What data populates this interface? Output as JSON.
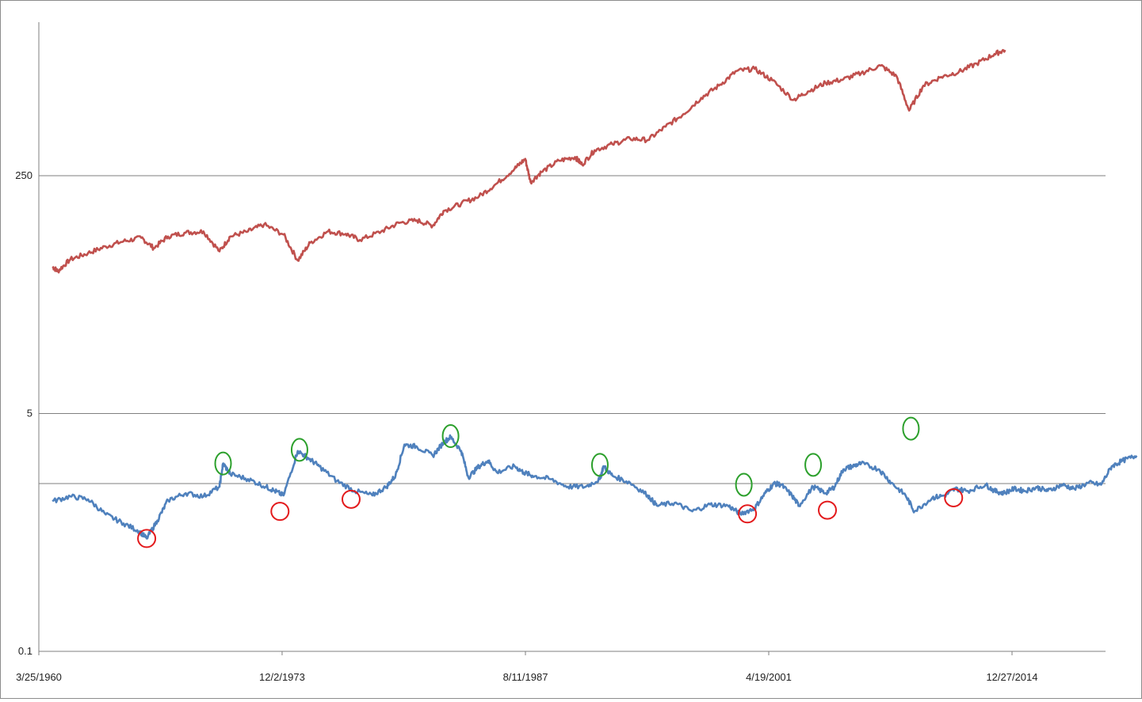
{
  "chart_data": {
    "type": "line",
    "title": "",
    "xlabel": "",
    "ylabel": "",
    "y_scale": "log",
    "ylim": [
      0.1,
      3125
    ],
    "xlim": [
      "1960-03-25",
      "2020-04-01"
    ],
    "y_tick_labels": [
      "0.1",
      "5",
      "250"
    ],
    "x_tick_labels": [
      "3/25/1960",
      "12/2/1973",
      "8/11/1987",
      "4/19/2001",
      "12/27/2014"
    ],
    "grid": true,
    "legend": "none",
    "colors": {
      "upper_series": "#c0504d",
      "lower_series": "#4f81bd",
      "peak_markers": "#2ca02c",
      "trough_markers": "#e31a1c",
      "gridlines": "#7f7f7f"
    },
    "series": [
      {
        "key": "upper",
        "points": [
          [
            1961.0,
            56
          ],
          [
            1961.3,
            52
          ],
          [
            1962.0,
            63
          ],
          [
            1963.0,
            70
          ],
          [
            1964.0,
            78
          ],
          [
            1965.0,
            85
          ],
          [
            1966.0,
            90
          ],
          [
            1966.7,
            76
          ],
          [
            1967.5,
            92
          ],
          [
            1968.5,
            98
          ],
          [
            1969.5,
            100
          ],
          [
            1970.4,
            72
          ],
          [
            1971.0,
            92
          ],
          [
            1972.0,
            100
          ],
          [
            1972.9,
            112
          ],
          [
            1974.0,
            95
          ],
          [
            1974.8,
            62
          ],
          [
            1975.5,
            83
          ],
          [
            1976.5,
            100
          ],
          [
            1977.5,
            96
          ],
          [
            1978.3,
            87
          ],
          [
            1979.5,
            100
          ],
          [
            1980.5,
            115
          ],
          [
            1981.5,
            120
          ],
          [
            1982.4,
            110
          ],
          [
            1983.0,
            140
          ],
          [
            1984.0,
            158
          ],
          [
            1985.0,
            178
          ],
          [
            1986.0,
            220
          ],
          [
            1987.0,
            280
          ],
          [
            1987.6,
            330
          ],
          [
            1987.9,
            225
          ],
          [
            1988.5,
            265
          ],
          [
            1989.5,
            320
          ],
          [
            1990.4,
            340
          ],
          [
            1990.8,
            300
          ],
          [
            1991.5,
            380
          ],
          [
            1992.5,
            420
          ],
          [
            1993.5,
            460
          ],
          [
            1994.5,
            450
          ],
          [
            1995.5,
            560
          ],
          [
            1996.5,
            690
          ],
          [
            1997.5,
            900
          ],
          [
            1998.5,
            1100
          ],
          [
            1999.5,
            1400
          ],
          [
            2000.5,
            1450
          ],
          [
            2001.5,
            1200
          ],
          [
            2002.7,
            870
          ],
          [
            2003.5,
            1000
          ],
          [
            2004.5,
            1150
          ],
          [
            2005.5,
            1220
          ],
          [
            2006.5,
            1350
          ],
          [
            2007.6,
            1530
          ],
          [
            2008.5,
            1280
          ],
          [
            2009.2,
            730
          ],
          [
            2010.0,
            1100
          ],
          [
            2011.0,
            1270
          ],
          [
            2012.0,
            1380
          ],
          [
            2013.0,
            1580
          ],
          [
            2014.0,
            1850
          ],
          [
            2014.6,
            1980
          ]
        ]
      },
      {
        "key": "lower",
        "points": [
          [
            1961.0,
            1.18
          ],
          [
            1962.0,
            1.28
          ],
          [
            1963.0,
            1.22
          ],
          [
            1964.0,
            0.95
          ],
          [
            1965.0,
            0.82
          ],
          [
            1965.9,
            0.72
          ],
          [
            1966.3,
            0.64
          ],
          [
            1966.9,
            0.86
          ],
          [
            1967.5,
            1.2
          ],
          [
            1968.5,
            1.35
          ],
          [
            1969.5,
            1.28
          ],
          [
            1970.4,
            1.5
          ],
          [
            1970.6,
            2.2
          ],
          [
            1971.0,
            1.85
          ],
          [
            1972.0,
            1.7
          ],
          [
            1973.0,
            1.5
          ],
          [
            1973.5,
            1.4
          ],
          [
            1974.0,
            1.3
          ],
          [
            1974.8,
            2.7
          ],
          [
            1975.4,
            2.4
          ],
          [
            1976.0,
            2.1
          ],
          [
            1977.0,
            1.65
          ],
          [
            1978.0,
            1.4
          ],
          [
            1979.0,
            1.3
          ],
          [
            1979.8,
            1.5
          ],
          [
            1980.3,
            1.8
          ],
          [
            1980.8,
            3.0
          ],
          [
            1981.5,
            2.9
          ],
          [
            1982.4,
            2.5
          ],
          [
            1983.0,
            3.1
          ],
          [
            1983.4,
            3.4
          ],
          [
            1984.0,
            2.7
          ],
          [
            1984.4,
            1.75
          ],
          [
            1985.0,
            2.1
          ],
          [
            1985.5,
            2.3
          ],
          [
            1986.0,
            1.9
          ],
          [
            1987.0,
            2.1
          ],
          [
            1987.5,
            1.9
          ],
          [
            1988.0,
            1.8
          ],
          [
            1989.0,
            1.7
          ],
          [
            1990.0,
            1.5
          ],
          [
            1991.0,
            1.5
          ],
          [
            1991.8,
            1.7
          ],
          [
            1992.0,
            2.1
          ],
          [
            1992.5,
            1.8
          ],
          [
            1993.5,
            1.6
          ],
          [
            1994.5,
            1.3
          ],
          [
            1995.0,
            1.1
          ],
          [
            1996.0,
            1.15
          ],
          [
            1997.0,
            1.0
          ],
          [
            1998.0,
            1.12
          ],
          [
            1999.0,
            1.1
          ],
          [
            1999.7,
            0.96
          ],
          [
            2000.5,
            1.05
          ],
          [
            2001.1,
            1.35
          ],
          [
            2001.6,
            1.58
          ],
          [
            2002.0,
            1.55
          ],
          [
            2002.6,
            1.3
          ],
          [
            2003.0,
            1.1
          ],
          [
            2003.8,
            1.5
          ],
          [
            2004.5,
            1.35
          ],
          [
            2005.0,
            1.5
          ],
          [
            2005.5,
            2.0
          ],
          [
            2006.0,
            2.1
          ],
          [
            2006.5,
            2.2
          ],
          [
            2007.5,
            2.0
          ],
          [
            2008.2,
            1.6
          ],
          [
            2009.0,
            1.3
          ],
          [
            2009.5,
            1.0
          ],
          [
            2010.5,
            1.25
          ],
          [
            2011.2,
            1.3
          ],
          [
            2011.8,
            1.45
          ],
          [
            2012.5,
            1.4
          ],
          [
            2013.5,
            1.55
          ],
          [
            2014.0,
            1.4
          ],
          [
            2014.5,
            1.35
          ],
          [
            2015.1,
            1.45
          ],
          [
            2015.7,
            1.4
          ],
          [
            2016.4,
            1.48
          ],
          [
            2017.0,
            1.4
          ],
          [
            2017.8,
            1.55
          ],
          [
            2018.5,
            1.45
          ],
          [
            2019.3,
            1.6
          ],
          [
            2020.0,
            1.55
          ],
          [
            2020.6,
            2.1
          ],
          [
            2021.2,
            2.3
          ],
          [
            2022.0,
            2.5
          ]
        ]
      }
    ],
    "peak_markers": [
      {
        "x": 1970.6,
        "y": 2.2
      },
      {
        "x": 1974.9,
        "y": 2.75
      },
      {
        "x": 1983.4,
        "y": 3.45
      },
      {
        "x": 1991.8,
        "y": 2.15
      },
      {
        "x": 1999.9,
        "y": 1.55
      },
      {
        "x": 2003.8,
        "y": 2.15
      },
      {
        "x": 2009.3,
        "y": 3.9
      }
    ],
    "trough_markers": [
      {
        "x": 1966.3,
        "y": 0.64
      },
      {
        "x": 1973.8,
        "y": 1.0
      },
      {
        "x": 1977.8,
        "y": 1.22
      },
      {
        "x": 2000.1,
        "y": 0.96
      },
      {
        "x": 2004.6,
        "y": 1.02
      },
      {
        "x": 2011.7,
        "y": 1.25
      }
    ]
  }
}
